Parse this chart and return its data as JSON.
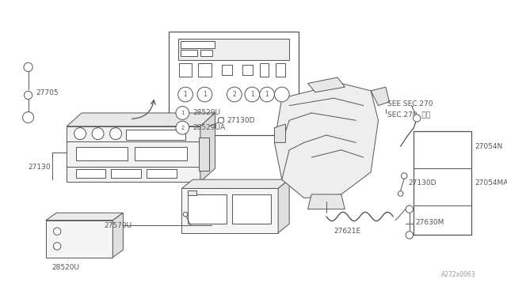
{
  "bg_color": "#ffffff",
  "line_color": "#555555",
  "fig_width": 6.4,
  "fig_height": 3.72,
  "dpi": 100,
  "watermark": "A272x0063",
  "note1": "SEE SEC.270",
  "note2": "SEC.270  参図",
  "label_27705": "27705",
  "label_27130": "27130",
  "label_27570U": "27570U",
  "label_28520U": "28520U",
  "label_27130D": "27130D",
  "label_28529U": "28529U",
  "label_28529UA": "28529UA",
  "label_27621E": "27621E",
  "label_27054N": "27054N",
  "label_27130D2": "27130D",
  "label_27054MA": "27054MA",
  "label_27630M": "27630M"
}
